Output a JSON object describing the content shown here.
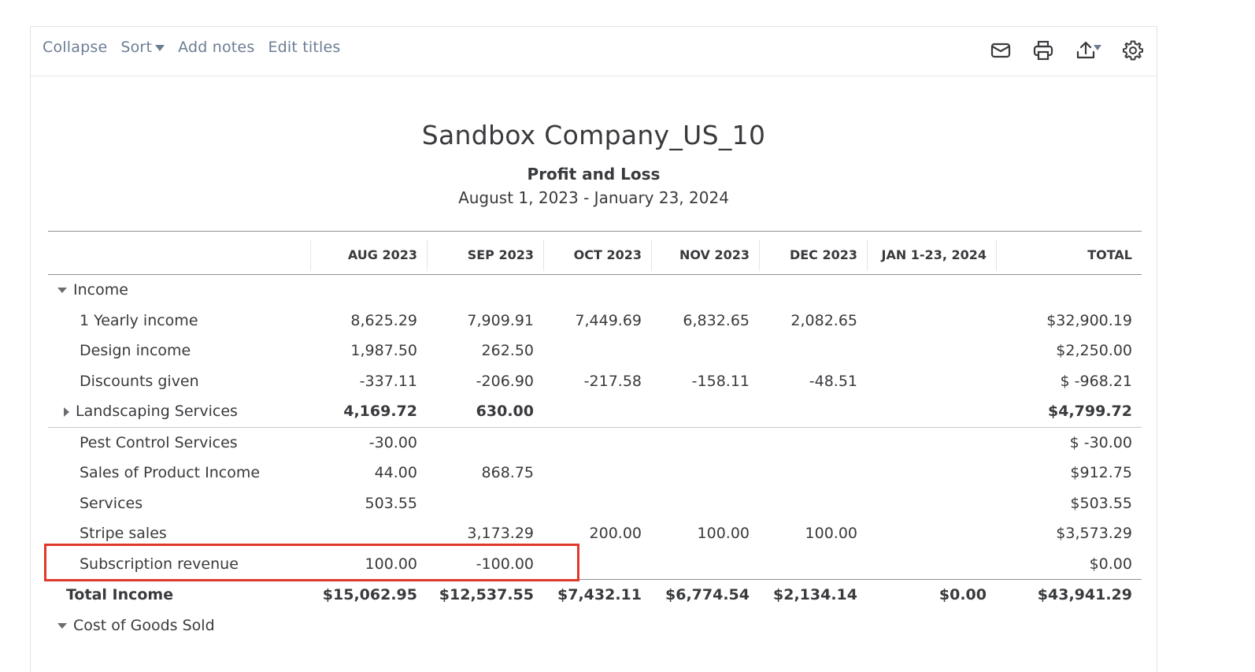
{
  "toolbar": {
    "collapse": "Collapse",
    "sort": "Sort",
    "add_notes": "Add notes",
    "edit_titles": "Edit titles",
    "icons": [
      "email-icon",
      "print-icon",
      "export-icon",
      "gear-icon"
    ]
  },
  "report": {
    "company": "Sandbox Company_US_10",
    "title": "Profit and Loss",
    "dates": "August 1, 2023 - January 23, 2024"
  },
  "columns": [
    "AUG 2023",
    "SEP 2023",
    "OCT 2023",
    "NOV 2023",
    "DEC 2023",
    "JAN 1-23, 2024",
    "TOTAL"
  ],
  "rows": [
    {
      "label": "Income",
      "kind": "group-open",
      "values": [
        "",
        "",
        "",
        "",
        "",
        "",
        ""
      ]
    },
    {
      "label": "1 Yearly income",
      "kind": "item",
      "values": [
        "8,625.29",
        "7,909.91",
        "7,449.69",
        "6,832.65",
        "2,082.65",
        "",
        "$32,900.19"
      ]
    },
    {
      "label": "Design income",
      "kind": "item",
      "values": [
        "1,987.50",
        "262.50",
        "",
        "",
        "",
        "",
        "$2,250.00"
      ]
    },
    {
      "label": "Discounts given",
      "kind": "item",
      "values": [
        "-337.11",
        "-206.90",
        "-217.58",
        "-158.11",
        "-48.51",
        "",
        "$ -968.21"
      ]
    },
    {
      "label": "Landscaping Services",
      "kind": "group-closed",
      "values": [
        "4,169.72",
        "630.00",
        "",
        "",
        "",
        "",
        "$4,799.72"
      ]
    },
    {
      "label": "Pest Control Services",
      "kind": "item",
      "values": [
        "-30.00",
        "",
        "",
        "",
        "",
        "",
        "$ -30.00"
      ]
    },
    {
      "label": "Sales of Product Income",
      "kind": "item",
      "values": [
        "44.00",
        "868.75",
        "",
        "",
        "",
        "",
        "$912.75"
      ]
    },
    {
      "label": "Services",
      "kind": "item",
      "values": [
        "503.55",
        "",
        "",
        "",
        "",
        "",
        "$503.55"
      ]
    },
    {
      "label": "Stripe sales",
      "kind": "item",
      "values": [
        "",
        "3,173.29",
        "200.00",
        "100.00",
        "100.00",
        "",
        "$3,573.29"
      ]
    },
    {
      "label": "Subscription revenue",
      "kind": "item",
      "values": [
        "100.00",
        "-100.00",
        "",
        "",
        "",
        "",
        "$0.00"
      ]
    },
    {
      "label": "Total Income",
      "kind": "total",
      "values": [
        "$15,062.95",
        "$12,537.55",
        "$7,432.11",
        "$6,774.54",
        "$2,134.14",
        "$0.00",
        "$43,941.29"
      ]
    },
    {
      "label": "Cost of Goods Sold",
      "kind": "group-open",
      "values": [
        "",
        "",
        "",
        "",
        "",
        "",
        ""
      ]
    }
  ],
  "colors": {
    "link": "#6b7c93",
    "text": "#393a3d",
    "highlight": "#e0392b"
  }
}
